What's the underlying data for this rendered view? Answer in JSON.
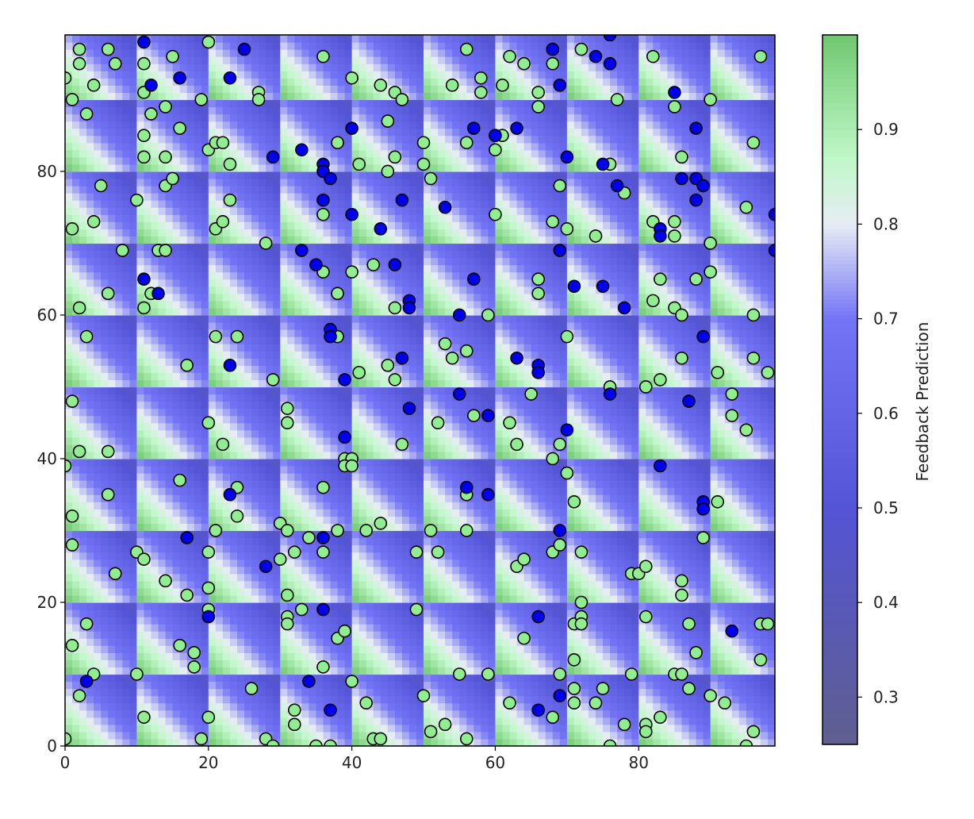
{
  "chart_data": {
    "type": "heatmap",
    "title": "",
    "xlabel": "",
    "ylabel": "",
    "xlim": [
      0,
      99
    ],
    "ylim": [
      0,
      99
    ],
    "x_ticks": [
      0,
      20,
      40,
      60,
      80
    ],
    "y_ticks": [
      0,
      20,
      40,
      60,
      80
    ],
    "grid": false,
    "background": {
      "description": "10x10 grid of blocks, each with a diagonal gradient from green (lower-left) to blue (upper-right)",
      "blocks": 10,
      "block_size": 10,
      "value_low_corner": 0.98,
      "value_high_corner": 0.45
    },
    "scatter": {
      "green_marker_color": "#90ee90",
      "blue_marker_color": "#0000ee",
      "edge_color": "#000000",
      "green_points": [
        [
          0,
          93
        ],
        [
          2,
          97
        ],
        [
          2,
          95
        ],
        [
          1,
          90
        ],
        [
          4,
          92
        ],
        [
          6,
          97
        ],
        [
          7,
          95
        ],
        [
          11,
          95
        ],
        [
          11,
          91
        ],
        [
          15,
          96
        ],
        [
          19,
          90
        ],
        [
          20,
          98
        ],
        [
          27,
          91
        ],
        [
          27,
          90
        ],
        [
          36,
          96
        ],
        [
          40,
          93
        ],
        [
          44,
          92
        ],
        [
          46,
          91
        ],
        [
          47,
          90
        ],
        [
          54,
          92
        ],
        [
          56,
          97
        ],
        [
          58,
          93
        ],
        [
          58,
          91
        ],
        [
          61,
          92
        ],
        [
          62,
          96
        ],
        [
          64,
          95
        ],
        [
          66,
          91
        ],
        [
          66,
          89
        ],
        [
          68,
          97
        ],
        [
          68,
          95
        ],
        [
          72,
          97
        ],
        [
          77,
          90
        ],
        [
          82,
          96
        ],
        [
          85,
          89
        ],
        [
          90,
          90
        ],
        [
          97,
          96
        ],
        [
          3,
          88
        ],
        [
          11,
          85
        ],
        [
          11,
          82
        ],
        [
          12,
          88
        ],
        [
          14,
          89
        ],
        [
          14,
          82
        ],
        [
          16,
          86
        ],
        [
          20,
          83
        ],
        [
          21,
          84
        ],
        [
          22,
          84
        ],
        [
          23,
          81
        ],
        [
          38,
          84
        ],
        [
          41,
          81
        ],
        [
          45,
          87
        ],
        [
          45,
          80
        ],
        [
          46,
          82
        ],
        [
          50,
          84
        ],
        [
          50,
          81
        ],
        [
          51,
          79
        ],
        [
          56,
          84
        ],
        [
          60,
          85
        ],
        [
          61,
          85
        ],
        [
          60,
          83
        ],
        [
          76,
          81
        ],
        [
          86,
          82
        ],
        [
          96,
          84
        ],
        [
          5,
          78
        ],
        [
          1,
          72
        ],
        [
          4,
          73
        ],
        [
          10,
          76
        ],
        [
          14,
          78
        ],
        [
          15,
          79
        ],
        [
          21,
          72
        ],
        [
          22,
          73
        ],
        [
          23,
          76
        ],
        [
          28,
          70
        ],
        [
          36,
          74
        ],
        [
          60,
          74
        ],
        [
          69,
          78
        ],
        [
          68,
          73
        ],
        [
          70,
          72
        ],
        [
          74,
          71
        ],
        [
          78,
          77
        ],
        [
          82,
          73
        ],
        [
          85,
          73
        ],
        [
          85,
          71
        ],
        [
          90,
          70
        ],
        [
          95,
          75
        ],
        [
          8,
          69
        ],
        [
          2,
          61
        ],
        [
          6,
          63
        ],
        [
          11,
          61
        ],
        [
          12,
          63
        ],
        [
          13,
          69
        ],
        [
          14,
          69
        ],
        [
          36,
          66
        ],
        [
          38,
          63
        ],
        [
          40,
          66
        ],
        [
          43,
          67
        ],
        [
          46,
          61
        ],
        [
          66,
          65
        ],
        [
          66,
          63
        ],
        [
          83,
          65
        ],
        [
          82,
          62
        ],
        [
          85,
          61
        ],
        [
          86,
          60
        ],
        [
          88,
          65
        ],
        [
          90,
          66
        ],
        [
          3,
          57
        ],
        [
          17,
          53
        ],
        [
          21,
          57
        ],
        [
          24,
          57
        ],
        [
          29,
          51
        ],
        [
          38,
          57
        ],
        [
          41,
          52
        ],
        [
          45,
          53
        ],
        [
          46,
          51
        ],
        [
          53,
          56
        ],
        [
          54,
          54
        ],
        [
          56,
          55
        ],
        [
          59,
          60
        ],
        [
          65,
          49
        ],
        [
          70,
          57
        ],
        [
          76,
          50
        ],
        [
          81,
          50
        ],
        [
          83,
          51
        ],
        [
          86,
          54
        ],
        [
          91,
          52
        ],
        [
          96,
          60
        ],
        [
          96,
          54
        ],
        [
          98,
          52
        ],
        [
          1,
          48
        ],
        [
          2,
          41
        ],
        [
          6,
          41
        ],
        [
          20,
          45
        ],
        [
          22,
          42
        ],
        [
          31,
          47
        ],
        [
          31,
          45
        ],
        [
          39,
          40
        ],
        [
          40,
          40
        ],
        [
          39,
          39
        ],
        [
          40,
          39
        ],
        [
          47,
          42
        ],
        [
          52,
          45
        ],
        [
          57,
          46
        ],
        [
          62,
          45
        ],
        [
          63,
          42
        ],
        [
          68,
          40
        ],
        [
          69,
          42
        ],
        [
          93,
          49
        ],
        [
          93,
          46
        ],
        [
          95,
          44
        ],
        [
          0,
          39
        ],
        [
          1,
          32
        ],
        [
          1,
          28
        ],
        [
          6,
          35
        ],
        [
          7,
          24
        ],
        [
          10,
          27
        ],
        [
          11,
          26
        ],
        [
          14,
          23
        ],
        [
          16,
          37
        ],
        [
          17,
          21
        ],
        [
          20,
          27
        ],
        [
          21,
          30
        ],
        [
          24,
          36
        ],
        [
          24,
          32
        ],
        [
          30,
          31
        ],
        [
          31,
          30
        ],
        [
          30,
          26
        ],
        [
          32,
          27
        ],
        [
          34,
          29
        ],
        [
          36,
          36
        ],
        [
          36,
          27
        ],
        [
          38,
          30
        ],
        [
          42,
          30
        ],
        [
          44,
          31
        ],
        [
          49,
          27
        ],
        [
          51,
          30
        ],
        [
          52,
          27
        ],
        [
          56,
          35
        ],
        [
          56,
          30
        ],
        [
          63,
          25
        ],
        [
          64,
          26
        ],
        [
          68,
          27
        ],
        [
          69,
          28
        ],
        [
          70,
          38
        ],
        [
          71,
          34
        ],
        [
          72,
          27
        ],
        [
          79,
          24
        ],
        [
          80,
          24
        ],
        [
          81,
          25
        ],
        [
          86,
          23
        ],
        [
          89,
          29
        ],
        [
          91,
          34
        ],
        [
          1,
          14
        ],
        [
          2,
          7
        ],
        [
          3,
          17
        ],
        [
          4,
          10
        ],
        [
          10,
          10
        ],
        [
          11,
          4
        ],
        [
          16,
          14
        ],
        [
          18,
          13
        ],
        [
          18,
          11
        ],
        [
          20,
          19
        ],
        [
          20,
          22
        ],
        [
          20,
          4
        ],
        [
          19,
          1
        ],
        [
          26,
          8
        ],
        [
          28,
          1
        ],
        [
          29,
          0
        ],
        [
          31,
          21
        ],
        [
          31,
          18
        ],
        [
          31,
          17
        ],
        [
          32,
          5
        ],
        [
          32,
          3
        ],
        [
          33,
          19
        ],
        [
          35,
          0
        ],
        [
          36,
          11
        ],
        [
          37,
          0
        ],
        [
          38,
          15
        ],
        [
          39,
          16
        ],
        [
          40,
          9
        ],
        [
          42,
          6
        ],
        [
          43,
          1
        ],
        [
          44,
          1
        ],
        [
          49,
          19
        ],
        [
          50,
          7
        ],
        [
          51,
          2
        ],
        [
          53,
          3
        ],
        [
          55,
          10
        ],
        [
          56,
          1
        ],
        [
          59,
          10
        ],
        [
          62,
          6
        ],
        [
          64,
          15
        ],
        [
          68,
          4
        ],
        [
          69,
          10
        ],
        [
          71,
          17
        ],
        [
          71,
          12
        ],
        [
          71,
          8
        ],
        [
          71,
          6
        ],
        [
          72,
          20
        ],
        [
          72,
          18
        ],
        [
          72,
          17
        ],
        [
          74,
          6
        ],
        [
          75,
          8
        ],
        [
          76,
          0
        ],
        [
          78,
          3
        ],
        [
          79,
          10
        ],
        [
          81,
          18
        ],
        [
          81,
          3
        ],
        [
          81,
          2
        ],
        [
          83,
          4
        ],
        [
          85,
          10
        ],
        [
          86,
          10
        ],
        [
          86,
          21
        ],
        [
          87,
          17
        ],
        [
          87,
          8
        ],
        [
          88,
          13
        ],
        [
          90,
          7
        ],
        [
          92,
          6
        ],
        [
          96,
          2
        ],
        [
          95,
          0
        ],
        [
          97,
          17
        ],
        [
          97,
          12
        ],
        [
          98,
          17
        ],
        [
          0,
          1
        ]
      ],
      "blue_points": [
        [
          11,
          98
        ],
        [
          12,
          92
        ],
        [
          16,
          93
        ],
        [
          23,
          93
        ],
        [
          25,
          97
        ],
        [
          68,
          97
        ],
        [
          69,
          92
        ],
        [
          74,
          96
        ],
        [
          76,
          99
        ],
        [
          76,
          95
        ],
        [
          85,
          91
        ],
        [
          29,
          82
        ],
        [
          33,
          83
        ],
        [
          36,
          81
        ],
        [
          36,
          80
        ],
        [
          37,
          79
        ],
        [
          40,
          86
        ],
        [
          57,
          86
        ],
        [
          60,
          85
        ],
        [
          63,
          86
        ],
        [
          70,
          82
        ],
        [
          75,
          81
        ],
        [
          86,
          79
        ],
        [
          88,
          86
        ],
        [
          88,
          79
        ],
        [
          89,
          78
        ],
        [
          77,
          78
        ],
        [
          36,
          76
        ],
        [
          40,
          74
        ],
        [
          44,
          72
        ],
        [
          47,
          76
        ],
        [
          53,
          75
        ],
        [
          83,
          72
        ],
        [
          83,
          71
        ],
        [
          88,
          76
        ],
        [
          99,
          74
        ],
        [
          99,
          69
        ],
        [
          11,
          65
        ],
        [
          13,
          63
        ],
        [
          33,
          69
        ],
        [
          35,
          67
        ],
        [
          46,
          67
        ],
        [
          48,
          62
        ],
        [
          48,
          61
        ],
        [
          55,
          60
        ],
        [
          57,
          65
        ],
        [
          69,
          69
        ],
        [
          71,
          64
        ],
        [
          75,
          64
        ],
        [
          78,
          61
        ],
        [
          23,
          53
        ],
        [
          37,
          58
        ],
        [
          37,
          57
        ],
        [
          39,
          51
        ],
        [
          47,
          54
        ],
        [
          48,
          47
        ],
        [
          55,
          49
        ],
        [
          59,
          46
        ],
        [
          63,
          54
        ],
        [
          66,
          53
        ],
        [
          66,
          52
        ],
        [
          76,
          49
        ],
        [
          87,
          48
        ],
        [
          89,
          57
        ],
        [
          39,
          43
        ],
        [
          70,
          44
        ],
        [
          83,
          39
        ],
        [
          23,
          35
        ],
        [
          17,
          29
        ],
        [
          28,
          25
        ],
        [
          36,
          29
        ],
        [
          56,
          36
        ],
        [
          59,
          35
        ],
        [
          69,
          30
        ],
        [
          89,
          34
        ],
        [
          89,
          33
        ],
        [
          3,
          9
        ],
        [
          20,
          18
        ],
        [
          34,
          9
        ],
        [
          36,
          19
        ],
        [
          37,
          5
        ],
        [
          66,
          18
        ],
        [
          66,
          5
        ],
        [
          69,
          7
        ],
        [
          93,
          16
        ]
      ]
    },
    "colorbar": {
      "label": "Feedback Prediction",
      "ticks": [
        0.3,
        0.4,
        0.5,
        0.6,
        0.7,
        0.8,
        0.9
      ],
      "range": [
        0.25,
        1.0
      ],
      "stops": [
        {
          "value": 0.25,
          "color": "#5f5f8f"
        },
        {
          "value": 0.5,
          "color": "#5454d6"
        },
        {
          "value": 0.7,
          "color": "#7474f6"
        },
        {
          "value": 0.8,
          "color": "#e7ecf4"
        },
        {
          "value": 0.87,
          "color": "#c0f8c8"
        },
        {
          "value": 1.0,
          "color": "#70c870"
        }
      ]
    }
  }
}
